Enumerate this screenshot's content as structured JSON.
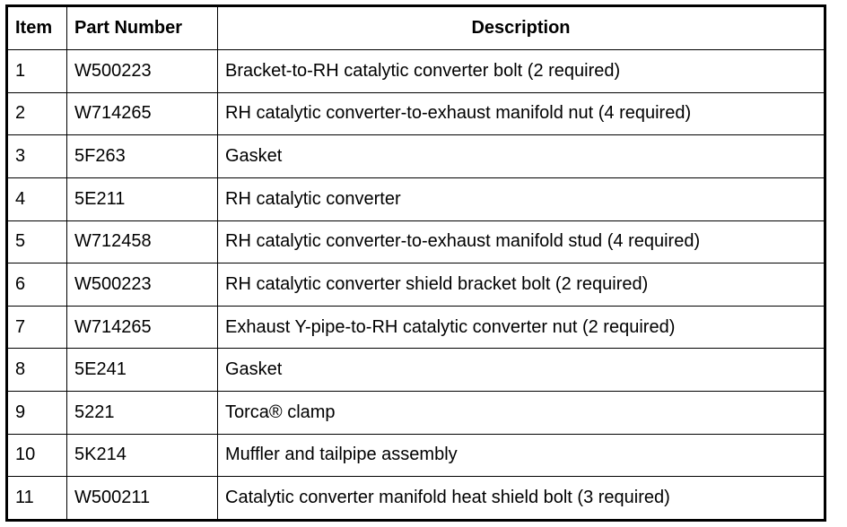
{
  "headers": {
    "item": "Item",
    "part_number": "Part Number",
    "description": "Description"
  },
  "rows": [
    {
      "item": "1",
      "part_number": "W500223",
      "description": "Bracket-to-RH catalytic converter bolt (2 required)"
    },
    {
      "item": "2",
      "part_number": "W714265",
      "description": "RH catalytic converter-to-exhaust manifold nut (4 required)"
    },
    {
      "item": "3",
      "part_number": "5F263",
      "description": "Gasket"
    },
    {
      "item": "4",
      "part_number": "5E211",
      "description": "RH catalytic converter"
    },
    {
      "item": "5",
      "part_number": "W712458",
      "description": "RH catalytic converter-to-exhaust manifold stud (4 required)"
    },
    {
      "item": "6",
      "part_number": "W500223",
      "description": "RH catalytic converter shield bracket bolt (2 required)"
    },
    {
      "item": "7",
      "part_number": "W714265",
      "description": "Exhaust Y-pipe-to-RH catalytic converter nut (2 required)"
    },
    {
      "item": "8",
      "part_number": "5E241",
      "description": "Gasket"
    },
    {
      "item": "9",
      "part_number": "5221",
      "description": "Torca® clamp"
    },
    {
      "item": "10",
      "part_number": "5K214",
      "description": "Muffler and tailpipe assembly"
    },
    {
      "item": "11",
      "part_number": "W500211",
      "description": "Catalytic converter manifold heat shield bolt (3 required)"
    }
  ]
}
